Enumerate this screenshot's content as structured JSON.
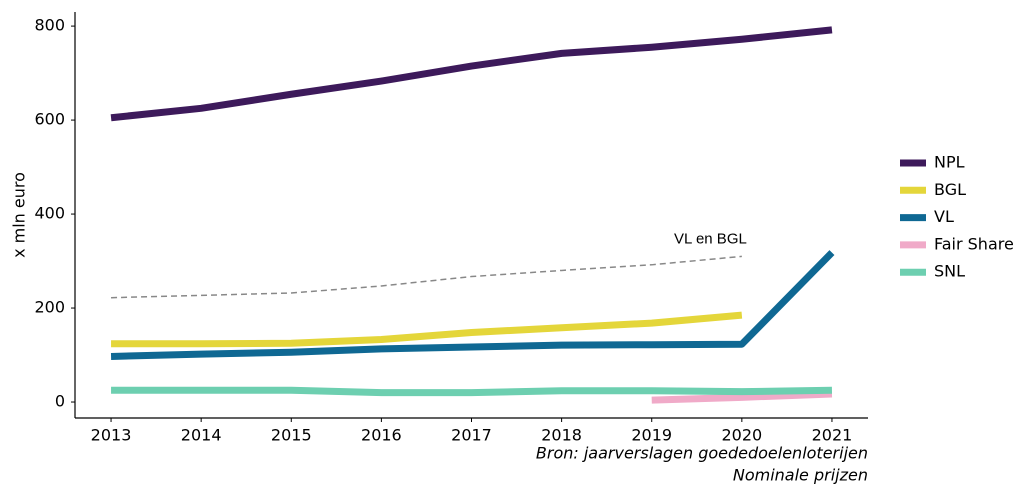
{
  "chart_data": {
    "type": "line",
    "y_label": "x mln euro",
    "x": [
      2013,
      2014,
      2015,
      2016,
      2017,
      2018,
      2019,
      2020,
      2021
    ],
    "xlim": [
      2012.6,
      2021.4
    ],
    "xticks": [
      2013,
      2014,
      2015,
      2016,
      2017,
      2018,
      2019,
      2020,
      2021
    ],
    "ylim": [
      -34,
      830
    ],
    "yticks": [
      0,
      200,
      400,
      600,
      800
    ],
    "series": [
      {
        "name": "NPL",
        "color": "#3d1a5b",
        "values": [
          605,
          625,
          655,
          683,
          715,
          742,
          755,
          772,
          792
        ]
      },
      {
        "name": "BGL",
        "color": "#e4d63a",
        "values": [
          124,
          124,
          125,
          133,
          148,
          158,
          168,
          185,
          null
        ]
      },
      {
        "name": "VL",
        "color": "#0f6893",
        "values": [
          97,
          102,
          106,
          113,
          117,
          121,
          122,
          123,
          318
        ]
      },
      {
        "name": "Fair Share",
        "color": "#f0aac8",
        "values": [
          null,
          null,
          null,
          null,
          null,
          null,
          4,
          10,
          17
        ]
      },
      {
        "name": "SNL",
        "color": "#6dcfb0",
        "values": [
          25,
          25,
          25,
          20,
          20,
          24,
          24,
          22,
          25
        ]
      }
    ],
    "reference_line": {
      "label": "VL en BGL",
      "color": "#888888",
      "values": [
        222,
        227,
        232,
        247,
        267,
        280,
        292,
        310,
        null
      ]
    },
    "legend": "right",
    "source": "Bron: jaarverslagen goededoelenloterijen",
    "note": "Nominale prijzen"
  }
}
